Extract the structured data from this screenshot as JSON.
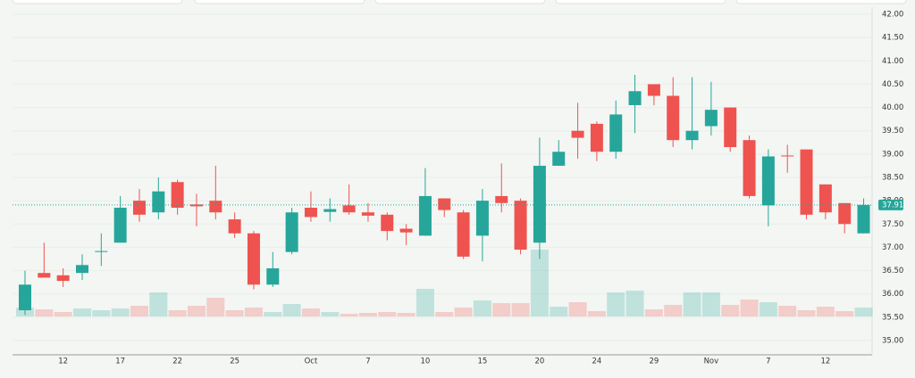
{
  "chart_data": {
    "type": "candlestick",
    "categories": [
      null,
      null,
      "12",
      null,
      null,
      "17",
      null,
      null,
      "22",
      null,
      null,
      "25",
      null,
      null,
      null,
      "Oct",
      null,
      null,
      "7",
      null,
      null,
      "10",
      null,
      null,
      "15",
      null,
      null,
      "20",
      null,
      null,
      "24",
      null,
      null,
      "29",
      null,
      null,
      "Nov",
      null,
      null,
      "7",
      null,
      null,
      "12",
      null,
      null
    ],
    "open": [
      35.65,
      36.45,
      36.4,
      36.45,
      36.9,
      37.1,
      38.0,
      37.75,
      38.4,
      37.92,
      38.0,
      37.6,
      37.3,
      36.2,
      36.9,
      37.85,
      37.76,
      37.9,
      37.75,
      37.7,
      37.4,
      37.25,
      38.05,
      37.75,
      37.25,
      38.1,
      38.0,
      37.1,
      38.75,
      39.5,
      39.65,
      39.05,
      40.05,
      40.5,
      40.25,
      39.3,
      39.6,
      40.0,
      39.3,
      37.9,
      38.97,
      39.1,
      38.35,
      37.95,
      37.3
    ],
    "high": [
      36.5,
      37.1,
      36.55,
      36.85,
      37.3,
      38.1,
      38.25,
      38.5,
      38.45,
      38.15,
      38.75,
      37.75,
      37.35,
      36.9,
      37.85,
      38.2,
      38.05,
      38.35,
      37.95,
      37.75,
      37.5,
      38.7,
      38.05,
      37.8,
      38.25,
      38.8,
      38.05,
      39.35,
      39.3,
      40.1,
      39.7,
      40.15,
      40.7,
      40.5,
      40.65,
      40.65,
      40.55,
      40.0,
      39.4,
      39.1,
      39.2,
      39.1,
      38.35,
      37.95,
      38.05
    ],
    "low": [
      35.55,
      36.35,
      36.15,
      36.3,
      36.6,
      37.1,
      37.55,
      37.6,
      37.7,
      37.45,
      37.6,
      37.2,
      36.1,
      36.15,
      36.85,
      37.55,
      37.55,
      37.7,
      37.55,
      37.15,
      37.05,
      37.25,
      37.65,
      36.75,
      36.7,
      37.75,
      36.85,
      36.75,
      38.75,
      38.9,
      38.85,
      38.9,
      39.45,
      40.05,
      39.15,
      39.1,
      39.4,
      39.05,
      38.05,
      37.45,
      38.6,
      37.6,
      37.6,
      37.3,
      37.3
    ],
    "close": [
      36.2,
      36.35,
      36.28,
      36.62,
      36.92,
      37.85,
      37.7,
      38.2,
      37.85,
      37.88,
      37.75,
      37.3,
      36.2,
      36.55,
      37.75,
      37.65,
      37.82,
      37.75,
      37.68,
      37.35,
      37.32,
      38.1,
      37.8,
      36.8,
      38.0,
      37.95,
      36.95,
      38.75,
      39.05,
      39.35,
      39.05,
      39.85,
      40.35,
      40.25,
      39.3,
      39.5,
      39.95,
      39.15,
      38.1,
      38.95,
      38.95,
      37.7,
      37.75,
      37.5,
      37.91
    ],
    "volume": [
      10,
      8,
      5,
      9,
      7,
      9,
      12,
      27,
      7,
      12,
      21,
      7,
      10,
      5,
      14,
      9,
      5,
      3,
      4,
      5,
      4,
      31,
      5,
      10,
      18,
      15,
      15,
      75,
      11,
      16,
      6,
      27,
      29,
      8,
      13,
      27,
      27,
      13,
      19,
      16,
      12,
      7,
      11,
      6,
      10
    ],
    "volume_lim": [
      0,
      100
    ],
    "up_color": "#26a69a",
    "down_color": "#ef5350",
    "ylim": [
      35,
      42
    ],
    "yticks": [
      {
        "value": 35,
        "label": "35.00"
      },
      {
        "value": 35.5,
        "label": "35.50"
      },
      {
        "value": 36,
        "label": "36.00"
      },
      {
        "value": 36.5,
        "label": "36.50"
      },
      {
        "value": 37,
        "label": "37.00"
      },
      {
        "value": 37.5,
        "label": "37.50"
      },
      {
        "value": 38,
        "label": "38.00"
      },
      {
        "value": 38.5,
        "label": "38.50"
      },
      {
        "value": 39,
        "label": "39.00"
      },
      {
        "value": 39.5,
        "label": "39.50"
      },
      {
        "value": 40,
        "label": "40.00"
      },
      {
        "value": 40.5,
        "label": "40.50"
      },
      {
        "value": 41,
        "label": "41.00"
      },
      {
        "value": 41.5,
        "label": "41.50"
      },
      {
        "value": 42,
        "label": "42.00"
      }
    ],
    "last_price": {
      "value": 37.91,
      "label": "37.91"
    },
    "grid": true
  }
}
